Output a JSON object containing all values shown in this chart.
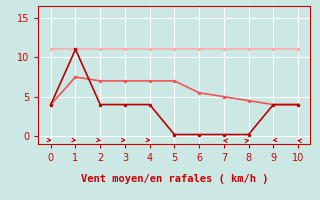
{
  "bg_color": "#cce8e4",
  "grid_color": "#ffffff",
  "xlabel": "Vent moyen/en rafales ( km/h )",
  "xlabel_color": "#cc0000",
  "xlabel_fontsize": 7.5,
  "tick_color": "#cc0000",
  "tick_fontsize": 7,
  "xlim": [
    -0.5,
    10.5
  ],
  "ylim": [
    -1.0,
    16.5
  ],
  "yticks": [
    0,
    5,
    10,
    15
  ],
  "xticks": [
    0,
    1,
    2,
    3,
    4,
    5,
    6,
    7,
    8,
    9,
    10
  ],
  "line_flat_x": [
    0,
    1,
    2,
    3,
    4,
    5,
    6,
    7,
    8,
    9,
    10
  ],
  "line_flat_y": [
    11,
    11,
    11,
    11,
    11,
    11,
    11,
    11,
    11,
    11,
    11
  ],
  "line_flat_color": "#ffaaaa",
  "line_mid_x": [
    0,
    1,
    2,
    3,
    4,
    5,
    6,
    7,
    8,
    9,
    10
  ],
  "line_mid_y": [
    4.0,
    7.5,
    7.0,
    7.0,
    7.0,
    7.0,
    5.5,
    5.0,
    4.5,
    4.0,
    4.0
  ],
  "line_mid_color": "#ee5555",
  "line_dark_x": [
    0,
    1,
    2,
    3,
    4,
    5,
    6,
    7,
    8,
    9,
    10
  ],
  "line_dark_y": [
    4.0,
    11.0,
    4.0,
    4.0,
    4.0,
    0.2,
    0.2,
    0.2,
    0.2,
    4.0,
    4.0
  ],
  "line_dark_color": "#bb0000",
  "arrows_x": [
    0,
    1,
    2,
    3,
    4,
    7,
    8,
    9,
    10
  ],
  "arrows_angle": [
    45,
    45,
    45,
    45,
    45,
    225,
    135,
    315,
    225
  ]
}
